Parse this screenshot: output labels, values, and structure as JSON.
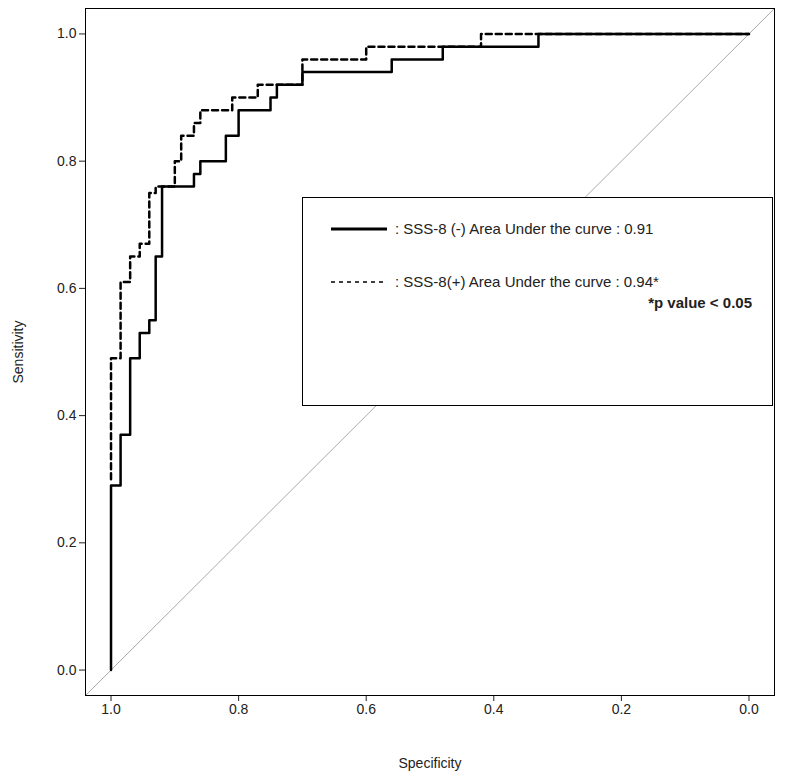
{
  "chart_data": {
    "type": "line",
    "xlabel": "Specificity",
    "ylabel": "Sensitivity",
    "xlim": [
      1.04,
      -0.04
    ],
    "ylim": [
      -0.04,
      1.04
    ],
    "xticks": [
      {
        "value": 1,
        "label": "1.0"
      },
      {
        "value": 0.8,
        "label": "0.8"
      },
      {
        "value": 0.6,
        "label": "0.6"
      },
      {
        "value": 0.4,
        "label": "0.4"
      },
      {
        "value": 0.2,
        "label": "0.2"
      },
      {
        "value": 0,
        "label": "0.0"
      }
    ],
    "yticks": [
      {
        "value": 0,
        "label": "0.0"
      },
      {
        "value": 0.2,
        "label": "0.2"
      },
      {
        "value": 0.4,
        "label": "0.4"
      },
      {
        "value": 0.6,
        "label": "0.6"
      },
      {
        "value": 0.8,
        "label": "0.8"
      },
      {
        "value": 1,
        "label": "1.0"
      }
    ],
    "grid": false,
    "legend": "right",
    "annotation": "*p value < 0.05",
    "series": [
      {
        "name": ": SSS-8 (-) Area Under the curve : 0.91",
        "color": "#000000",
        "line_style": "solid",
        "x": [
          1.0,
          1.0,
          0.985,
          0.985,
          0.97,
          0.97,
          0.955,
          0.955,
          0.94,
          0.94,
          0.93,
          0.93,
          0.92,
          0.92,
          0.87,
          0.87,
          0.86,
          0.86,
          0.82,
          0.82,
          0.8,
          0.8,
          0.75,
          0.75,
          0.74,
          0.74,
          0.7,
          0.7,
          0.56,
          0.56,
          0.48,
          0.48,
          0.33,
          0.33,
          0.0
        ],
        "values": [
          0.0,
          0.29,
          0.29,
          0.37,
          0.37,
          0.49,
          0.49,
          0.53,
          0.53,
          0.55,
          0.55,
          0.65,
          0.65,
          0.76,
          0.76,
          0.78,
          0.78,
          0.8,
          0.8,
          0.84,
          0.84,
          0.88,
          0.88,
          0.9,
          0.9,
          0.92,
          0.92,
          0.94,
          0.94,
          0.96,
          0.96,
          0.98,
          0.98,
          1.0,
          1.0
        ]
      },
      {
        "name": ": SSS-8(+) Area Under the curve : 0.94*",
        "color": "#000000",
        "line_style": "dashed",
        "x": [
          1.0,
          1.0,
          0.985,
          0.985,
          0.97,
          0.97,
          0.955,
          0.955,
          0.94,
          0.94,
          0.93,
          0.93,
          0.9,
          0.9,
          0.89,
          0.89,
          0.87,
          0.87,
          0.86,
          0.86,
          0.81,
          0.81,
          0.77,
          0.77,
          0.7,
          0.7,
          0.6,
          0.6,
          0.42,
          0.42,
          0.0
        ],
        "values": [
          0.3,
          0.49,
          0.49,
          0.61,
          0.61,
          0.65,
          0.65,
          0.67,
          0.67,
          0.75,
          0.75,
          0.76,
          0.76,
          0.8,
          0.8,
          0.84,
          0.84,
          0.86,
          0.86,
          0.88,
          0.88,
          0.9,
          0.9,
          0.92,
          0.92,
          0.96,
          0.96,
          0.98,
          0.98,
          1.0,
          1.0
        ]
      }
    ]
  }
}
